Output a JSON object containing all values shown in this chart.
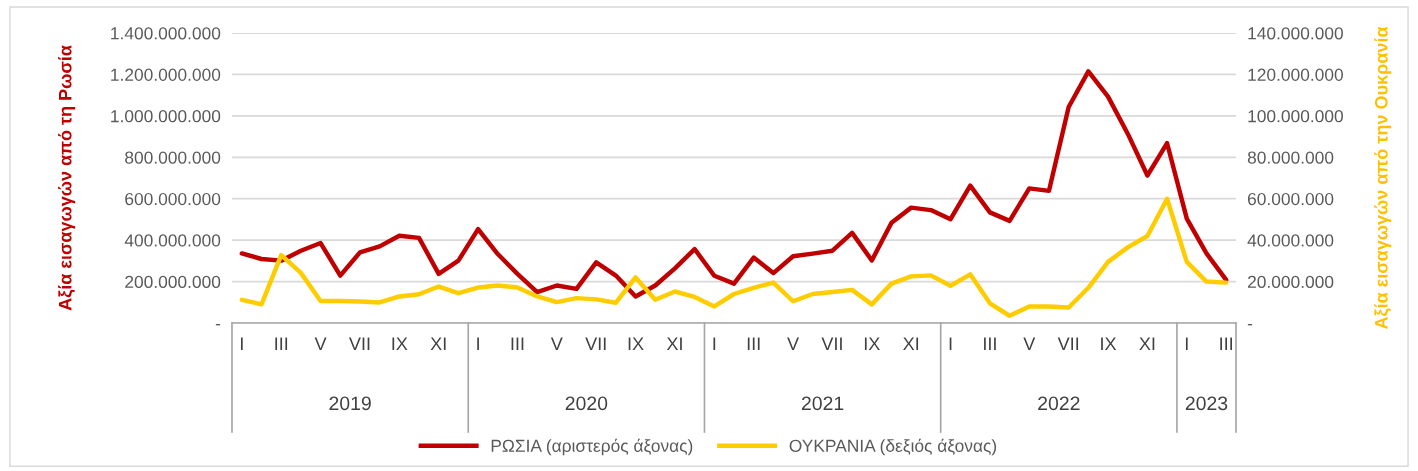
{
  "chart_data": {
    "type": "line",
    "categories": [
      "I",
      null,
      "III",
      null,
      "V",
      null,
      "VII",
      null,
      "IX",
      null,
      "XI",
      null,
      "I",
      null,
      "III",
      null,
      "V",
      null,
      "VII",
      null,
      "IX",
      null,
      "XI",
      null,
      "I",
      null,
      "III",
      null,
      "V",
      null,
      "VII",
      null,
      "IX",
      null,
      "XI",
      null,
      "I",
      null,
      "III",
      null,
      "V",
      null,
      "VII",
      null,
      "IX",
      null,
      "XI",
      null,
      "I",
      null,
      "III"
    ],
    "series": [
      {
        "name": "ΡΩΣΙΑ (αριστερός άξονας)",
        "color": "#c00000",
        "values": [
          336000000,
          309000000,
          301000000,
          349000000,
          386000000,
          229000000,
          341000000,
          370000000,
          421000000,
          411000000,
          237000000,
          301000000,
          453000000,
          333000000,
          237000000,
          149000000,
          181000000,
          165000000,
          293000000,
          229000000,
          128000000,
          181000000,
          264000000,
          357000000,
          228000000,
          190000000,
          316000000,
          241000000,
          322000000,
          335000000,
          349000000,
          435000000,
          302000000,
          484000000,
          557000000,
          545000000,
          501000000,
          663000000,
          534000000,
          493000000,
          650000000,
          638000000,
          1043000000,
          1215000000,
          1093000000,
          914000000,
          712000000,
          868000000,
          504000000,
          336000000,
          208000000
        ]
      },
      {
        "name": "ΟΥΚΡΑΝΙΑ (δεξιός άξονας)",
        "color": "#ffcc00",
        "axis": "y2",
        "values": [
          11200000,
          9000000,
          32800000,
          24200000,
          10600000,
          10600000,
          10400000,
          9900000,
          12800000,
          13900000,
          17600000,
          14400000,
          17100000,
          18100000,
          17100000,
          12800000,
          10100000,
          12000000,
          11400000,
          9800000,
          22000000,
          11200000,
          15200000,
          12600000,
          8000000,
          14000000,
          17000000,
          19500000,
          10500000,
          14000000,
          15000000,
          16000000,
          9000000,
          19000000,
          22500000,
          23000000,
          18000000,
          23500000,
          9500000,
          3500000,
          8000000,
          8000000,
          7500000,
          17000000,
          29500000,
          36500000,
          42000000,
          60000000,
          29500000,
          20000000,
          19500000
        ]
      }
    ],
    "ylabel": "Αξία εισαγωγών από τη Ρωσία",
    "y2label": "Αξία εισαγωγών από την Ουκρανία",
    "ylim": [
      0,
      1400000000
    ],
    "yticks": [
      {
        "value": 0,
        "label": "-"
      },
      {
        "value": 200000000,
        "label": "200.000.000"
      },
      {
        "value": 400000000,
        "label": "400.000.000"
      },
      {
        "value": 600000000,
        "label": "600.000.000"
      },
      {
        "value": 800000000,
        "label": "800.000.000"
      },
      {
        "value": 1000000000,
        "label": "1.000.000.000"
      },
      {
        "value": 1200000000,
        "label": "1.200.000.000"
      },
      {
        "value": 1400000000,
        "label": "1.400.000.000"
      }
    ],
    "y2lim": [
      0,
      140000000
    ],
    "y2ticks": [
      {
        "value": 0,
        "label": "-"
      },
      {
        "value": 20000000,
        "label": "20.000.000"
      },
      {
        "value": 40000000,
        "label": "40.000.000"
      },
      {
        "value": 60000000,
        "label": "60.000.000"
      },
      {
        "value": 80000000,
        "label": "80.000.000"
      },
      {
        "value": 100000000,
        "label": "100.000.000"
      },
      {
        "value": 120000000,
        "label": "120.000.000"
      },
      {
        "value": 140000000,
        "label": "140.000.000"
      }
    ],
    "annotations": [
      "2019",
      "2020",
      "2021",
      "2022",
      "2023"
    ],
    "grid": "y",
    "legend": "bottom",
    "line_style": "solid",
    "marker": "none"
  }
}
